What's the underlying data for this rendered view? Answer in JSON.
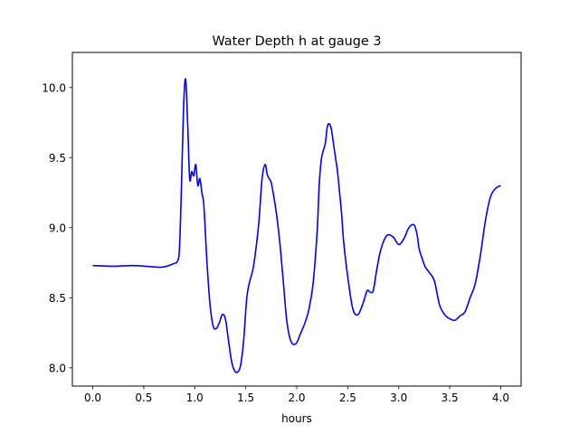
{
  "chart_data": {
    "type": "line",
    "title": "Water Depth h at gauge 3",
    "xlabel": "hours",
    "ylabel": "",
    "xlim": [
      -0.2,
      4.2
    ],
    "ylim": [
      7.87,
      10.25
    ],
    "x_ticks": [
      0.0,
      0.5,
      1.0,
      1.5,
      2.0,
      2.5,
      3.0,
      3.5,
      4.0
    ],
    "x_tick_labels": [
      "0.0",
      "0.5",
      "1.0",
      "1.5",
      "2.0",
      "2.5",
      "3.0",
      "3.5",
      "4.0"
    ],
    "y_ticks": [
      8.0,
      8.5,
      9.0,
      9.5,
      10.0
    ],
    "y_tick_labels": [
      "8.0",
      "8.5",
      "9.0",
      "9.5",
      "10.0"
    ],
    "grid": false,
    "legend": "none",
    "series": [
      {
        "color": "#0000ff",
        "x": [
          0.0,
          0.2,
          0.4,
          0.6,
          0.7,
          0.8,
          0.83,
          0.85,
          0.87,
          0.89,
          0.91,
          0.93,
          0.95,
          0.97,
          0.99,
          1.01,
          1.03,
          1.05,
          1.07,
          1.09,
          1.12,
          1.15,
          1.18,
          1.21,
          1.24,
          1.27,
          1.3,
          1.33,
          1.36,
          1.39,
          1.42,
          1.45,
          1.48,
          1.51,
          1.54,
          1.57,
          1.6,
          1.63,
          1.66,
          1.69,
          1.71,
          1.73,
          1.75,
          1.78,
          1.81,
          1.84,
          1.87,
          1.9,
          1.93,
          1.96,
          2.0,
          2.04,
          2.08,
          2.12,
          2.16,
          2.2,
          2.22,
          2.24,
          2.26,
          2.28,
          2.3,
          2.32,
          2.34,
          2.36,
          2.38,
          2.4,
          2.42,
          2.44,
          2.46,
          2.5,
          2.55,
          2.6,
          2.65,
          2.69,
          2.72,
          2.75,
          2.78,
          2.81,
          2.84,
          2.87,
          2.9,
          2.95,
          3.0,
          3.05,
          3.1,
          3.15,
          3.18,
          3.2,
          3.23,
          3.26,
          3.3,
          3.35,
          3.4,
          3.45,
          3.5,
          3.55,
          3.6,
          3.65,
          3.7,
          3.75,
          3.8,
          3.85,
          3.9,
          3.95,
          4.0
        ],
        "y": [
          8.73,
          8.725,
          8.73,
          8.72,
          8.72,
          8.745,
          8.76,
          8.85,
          9.3,
          9.85,
          10.06,
          9.75,
          9.35,
          9.4,
          9.37,
          9.45,
          9.3,
          9.35,
          9.25,
          9.15,
          8.75,
          8.45,
          8.3,
          8.28,
          8.32,
          8.38,
          8.35,
          8.2,
          8.05,
          7.98,
          7.97,
          8.02,
          8.2,
          8.5,
          8.62,
          8.7,
          8.85,
          9.05,
          9.35,
          9.45,
          9.38,
          9.35,
          9.32,
          9.2,
          9.05,
          8.85,
          8.6,
          8.35,
          8.22,
          8.17,
          8.18,
          8.25,
          8.32,
          8.42,
          8.6,
          8.97,
          9.3,
          9.48,
          9.55,
          9.6,
          9.72,
          9.74,
          9.7,
          9.6,
          9.5,
          9.4,
          9.25,
          9.1,
          8.9,
          8.65,
          8.42,
          8.38,
          8.46,
          8.55,
          8.54,
          8.55,
          8.68,
          8.8,
          8.88,
          8.93,
          8.95,
          8.93,
          8.88,
          8.92,
          9.0,
          9.02,
          8.95,
          8.85,
          8.78,
          8.72,
          8.68,
          8.62,
          8.45,
          8.38,
          8.35,
          8.34,
          8.37,
          8.4,
          8.5,
          8.6,
          8.8,
          9.05,
          9.22,
          9.28,
          9.3
        ]
      }
    ]
  }
}
